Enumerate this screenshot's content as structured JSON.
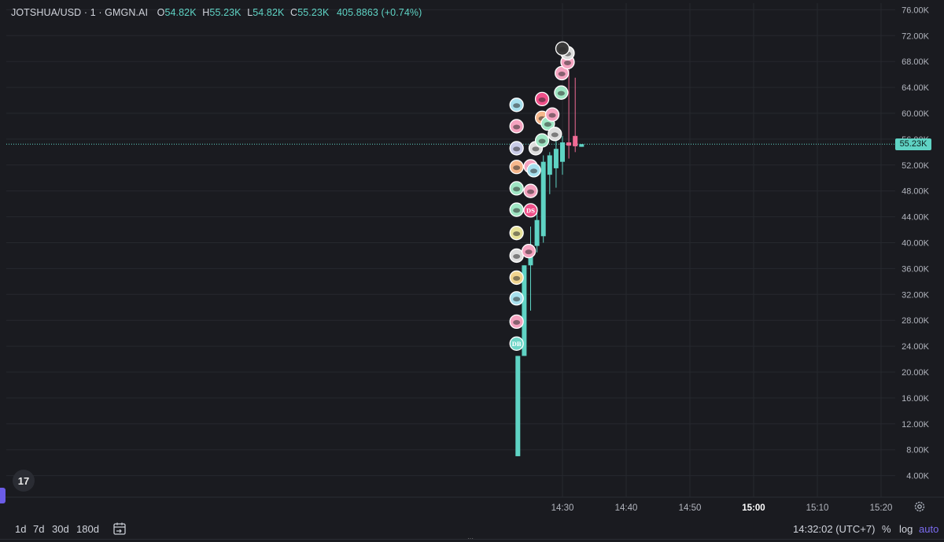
{
  "header": {
    "symbol": "JOTSHUA/USD · 1 · GMGN.AI",
    "o_label": "O",
    "o_value": "54.82K",
    "h_label": "H",
    "h_value": "55.23K",
    "l_label": "L",
    "l_value": "54.82K",
    "c_label": "C",
    "c_value": "55.23K",
    "change": "405.8863 (+0.74%)"
  },
  "current_price_label": "55.23K",
  "logo_text": "17",
  "bottom_bar": {
    "ranges": [
      "1d",
      "7d",
      "30d",
      "180d"
    ],
    "time": "14:32:02 (UTC+7)",
    "percent": "%",
    "log": "log",
    "auto": "auto"
  },
  "colors": {
    "up": "#5fd3c4",
    "down": "#f06b95",
    "background": "#1a1b20",
    "grid": "#26282e",
    "accent": "#7b6cf0"
  },
  "chart_data": {
    "type": "candlestick",
    "y_ticks": [
      "76.00K",
      "72.00K",
      "68.00K",
      "64.00K",
      "60.00K",
      "56.00K",
      "52.00K",
      "48.00K",
      "44.00K",
      "40.00K",
      "36.00K",
      "32.00K",
      "28.00K",
      "24.00K",
      "20.00K",
      "16.00K",
      "12.00K",
      "8.00K",
      "4.00K"
    ],
    "y_tick_values": [
      76000,
      72000,
      68000,
      64000,
      60000,
      56000,
      52000,
      48000,
      44000,
      40000,
      36000,
      32000,
      28000,
      24000,
      20000,
      16000,
      12000,
      8000,
      4000
    ],
    "x_ticks": [
      {
        "label": "14:30",
        "minute": 0,
        "bold": false
      },
      {
        "label": "14:40",
        "minute": 10,
        "bold": false
      },
      {
        "label": "14:50",
        "minute": 20,
        "bold": false
      },
      {
        "label": "15:00",
        "minute": 30,
        "bold": true
      },
      {
        "label": "15:10",
        "minute": 40,
        "bold": false
      },
      {
        "label": "15:20",
        "minute": 50,
        "bold": false
      }
    ],
    "ylim": [
      0,
      78000
    ],
    "current_price": 55230,
    "candles": [
      {
        "minute": -7,
        "open": 7000,
        "high": 22500,
        "low": 7000,
        "close": 22500
      },
      {
        "minute": -6,
        "open": 22500,
        "high": 36500,
        "low": 22500,
        "close": 36500
      },
      {
        "minute": -5,
        "open": 36500,
        "high": 42500,
        "low": 29500,
        "close": 39500
      },
      {
        "minute": -4,
        "open": 39500,
        "high": 45500,
        "low": 38500,
        "close": 43500
      },
      {
        "minute": -3,
        "open": 41000,
        "high": 53500,
        "low": 40000,
        "close": 52500
      },
      {
        "minute": -2,
        "open": 50500,
        "high": 54000,
        "low": 47500,
        "close": 53500
      },
      {
        "minute": -1,
        "open": 51500,
        "high": 57500,
        "low": 48500,
        "close": 54500
      },
      {
        "minute": 0,
        "open": 52500,
        "high": 56500,
        "low": 50500,
        "close": 55500
      },
      {
        "minute": 1,
        "open": 55500,
        "high": 68500,
        "low": 53000,
        "close": 55000
      },
      {
        "minute": 2,
        "open": 56500,
        "high": 65500,
        "low": 54000,
        "close": 54900
      },
      {
        "minute": 3,
        "open": 54820,
        "high": 55230,
        "low": 54820,
        "close": 55230
      }
    ],
    "markers": [
      {
        "minute": -7.2,
        "value": 61300,
        "label": "",
        "color": "#a7e0ee"
      },
      {
        "minute": -7.2,
        "value": 58000,
        "label": "",
        "color": "#f5a3c0"
      },
      {
        "minute": -7.2,
        "value": 54600,
        "label": "",
        "color": "#c9cbe8"
      },
      {
        "minute": -7.2,
        "value": 51700,
        "label": "",
        "color": "#f7b78c"
      },
      {
        "minute": -7.2,
        "value": 48400,
        "label": "",
        "color": "#9fe6c4"
      },
      {
        "minute": -7.2,
        "value": 45100,
        "label": "",
        "color": "#9fe6c4"
      },
      {
        "minute": -7.2,
        "value": 41500,
        "label": "",
        "color": "#e8e39a"
      },
      {
        "minute": -7.2,
        "value": 38000,
        "label": "",
        "color": "#dddddd"
      },
      {
        "minute": -7.2,
        "value": 34600,
        "label": "",
        "color": "#f1d48f"
      },
      {
        "minute": -7.2,
        "value": 31400,
        "label": "",
        "color": "#a7e0ee"
      },
      {
        "minute": -7.2,
        "value": 27800,
        "label": "",
        "color": "#f5a3c0"
      },
      {
        "minute": -7.2,
        "value": 24400,
        "label": "DB",
        "color": "#6fd6c8"
      },
      {
        "minute": -5.0,
        "value": 45000,
        "label": "DS",
        "color": "#f0508a"
      },
      {
        "minute": -5.3,
        "value": 38700,
        "label": "",
        "color": "#f5a3c0"
      },
      {
        "minute": -5.0,
        "value": 51800,
        "label": "",
        "color": "#f5a3c0"
      },
      {
        "minute": -4.5,
        "value": 51200,
        "label": "",
        "color": "#a7e0ee"
      },
      {
        "minute": -5.0,
        "value": 48000,
        "label": "",
        "color": "#f5a3c0"
      },
      {
        "minute": -4.2,
        "value": 54600,
        "label": "",
        "color": "#dddddd"
      },
      {
        "minute": -3.2,
        "value": 55800,
        "label": "",
        "color": "#9fe6c4"
      },
      {
        "minute": -3.2,
        "value": 59300,
        "label": "",
        "color": "#f7b78c"
      },
      {
        "minute": -3.2,
        "value": 62200,
        "label": "",
        "color": "#f0508a"
      },
      {
        "minute": -2.3,
        "value": 58400,
        "label": "",
        "color": "#9fe6c4"
      },
      {
        "minute": -1.6,
        "value": 59800,
        "label": "",
        "color": "#f5a3c0"
      },
      {
        "minute": -1.2,
        "value": 56800,
        "label": "",
        "color": "#dddddd"
      },
      {
        "minute": -0.2,
        "value": 63200,
        "label": "",
        "color": "#9fe6c4"
      },
      {
        "minute": -0.1,
        "value": 66200,
        "label": "",
        "color": "#f5a3c0"
      },
      {
        "minute": 0.8,
        "value": 67900,
        "label": "",
        "color": "#f5a3c0"
      },
      {
        "minute": 0.8,
        "value": 69300,
        "label": "",
        "color": "#dddddd"
      },
      {
        "minute": 0.0,
        "value": 70000,
        "label": "",
        "color": "#3a3a3a"
      }
    ]
  }
}
